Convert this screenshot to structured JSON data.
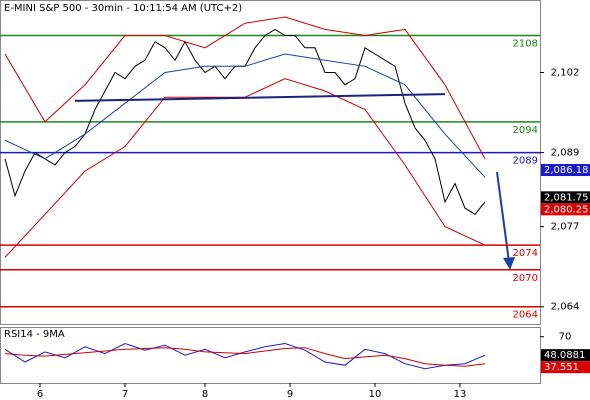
{
  "chart_data": [
    {
      "type": "line",
      "title": "E-MINI S&P 500 - 30min - 10:11:54 AM (UTC+2)",
      "xlim": [
        -0.5,
        53.5
      ],
      "ylim": [
        2061.2,
        2113.6
      ],
      "yticks": [
        {
          "value": 2102,
          "label": "2,102"
        },
        {
          "value": 2089,
          "label": "2,089"
        },
        {
          "value": 2077,
          "label": "2,077"
        },
        {
          "value": 2064,
          "label": "2,064"
        }
      ],
      "xticks": [
        {
          "value": 3.5,
          "label": "6"
        },
        {
          "value": 12,
          "label": "7"
        },
        {
          "value": 20,
          "label": "8"
        },
        {
          "value": 28.5,
          "label": "9"
        },
        {
          "value": 37,
          "label": "10"
        },
        {
          "value": 45.5,
          "label": "13"
        }
      ],
      "series": [
        {
          "color": "#000000",
          "x": [
            0,
            1,
            2,
            3,
            4,
            5,
            6,
            7,
            8,
            9,
            10,
            11,
            12,
            13,
            14,
            15,
            16,
            17,
            18,
            19,
            20,
            21,
            22,
            23,
            24,
            25,
            26,
            27,
            28,
            29,
            30,
            31,
            32,
            33,
            34,
            35,
            36,
            37,
            38,
            39,
            40,
            41,
            42,
            43,
            44,
            45,
            46,
            47,
            48
          ],
          "values": [
            2088,
            2082,
            2086,
            2089,
            2088,
            2087,
            2089,
            2090,
            2092,
            2096,
            2099,
            2102,
            2101,
            2103,
            2104,
            2107,
            2106,
            2104,
            2107,
            2104,
            2102,
            2103,
            2101,
            2103,
            2103,
            2106,
            2108,
            2109,
            2108,
            2108,
            2106,
            2106,
            2102,
            2102,
            2100,
            2101,
            2106,
            2105,
            2104,
            2103,
            2097,
            2093,
            2091,
            2088,
            2081,
            2084,
            2080,
            2079,
            2081
          ]
        },
        {
          "color": "#cc0000",
          "x": [
            0,
            4,
            8,
            12,
            16,
            20,
            24,
            28,
            32,
            36,
            40,
            44,
            48
          ],
          "values": [
            2105,
            2094,
            2100,
            2108,
            2108,
            2106,
            2110,
            2111,
            2109,
            2108,
            2109,
            2100,
            2088
          ]
        },
        {
          "color": "#cc0000",
          "x": [
            0,
            4,
            8,
            12,
            16,
            20,
            24,
            28,
            32,
            36,
            40,
            44,
            48
          ],
          "values": [
            2072,
            2079,
            2086,
            2090,
            2098,
            2098,
            2098,
            2101,
            2099,
            2096,
            2087,
            2077,
            2074
          ]
        },
        {
          "color": "#1f3f9f",
          "x": [
            0,
            4,
            8,
            12,
            16,
            20,
            24,
            28,
            32,
            36,
            40,
            44,
            48
          ],
          "values": [
            2091,
            2088,
            2092,
            2097,
            2102,
            2103,
            2103,
            2105,
            2104,
            2103,
            2100,
            2092,
            2085
          ]
        },
        {
          "color": "#1a237e",
          "x": [
            7,
            44
          ],
          "values": [
            2097.4,
            2098.5
          ]
        }
      ],
      "levels": [
        {
          "value": 2108,
          "label": "2108",
          "color": "#1a8a1a"
        },
        {
          "value": 2094,
          "label": "2094",
          "color": "#1a8a1a"
        },
        {
          "value": 2089,
          "label": "2089",
          "color": "#1a1acc"
        },
        {
          "value": 2074,
          "label": "2074",
          "color": "#dd0000"
        },
        {
          "value": 2070,
          "label": "2070",
          "color": "#dd0000"
        },
        {
          "value": 2064,
          "label": "2064",
          "color": "#dd0000"
        }
      ],
      "price_tags": [
        {
          "value": 2086.18,
          "label": "2,086.18",
          "color": "#1a1acc"
        },
        {
          "value": 2081.75,
          "label": "2,081.75",
          "color": "#000000"
        },
        {
          "value": 2080.25,
          "label": "2,080.25",
          "color": "#dd0000"
        }
      ]
    },
    {
      "type": "line",
      "title": "RSI14 - 9MA",
      "xlim": [
        -0.5,
        53.5
      ],
      "ylim": [
        15,
        78
      ],
      "yticks": [
        70
      ],
      "series": [
        {
          "color": "#1a1acc",
          "x": [
            0,
            2,
            4,
            6,
            8,
            10,
            12,
            14,
            16,
            18,
            20,
            22,
            24,
            26,
            28,
            30,
            32,
            34,
            36,
            38,
            40,
            42,
            44,
            46,
            48
          ],
          "values": [
            55,
            40,
            52,
            45,
            58,
            50,
            62,
            54,
            60,
            48,
            55,
            45,
            52,
            58,
            62,
            54,
            40,
            36,
            55,
            50,
            38,
            32,
            36,
            38,
            48
          ]
        },
        {
          "color": "#cc0000",
          "x": [
            0,
            2,
            4,
            6,
            8,
            10,
            12,
            14,
            16,
            18,
            20,
            22,
            24,
            26,
            28,
            30,
            32,
            34,
            36,
            38,
            40,
            42,
            44,
            46,
            48
          ],
          "values": [
            50,
            48,
            47,
            49,
            51,
            53,
            55,
            56,
            57,
            55,
            52,
            51,
            50,
            53,
            56,
            57,
            50,
            44,
            46,
            48,
            44,
            38,
            36,
            35,
            38
          ]
        }
      ],
      "price_tags": [
        {
          "value": 48.0881,
          "label": "48.0881",
          "color": "#000000"
        },
        {
          "value": 37.551,
          "label": "37.551",
          "color": "#dd0000"
        }
      ]
    }
  ]
}
